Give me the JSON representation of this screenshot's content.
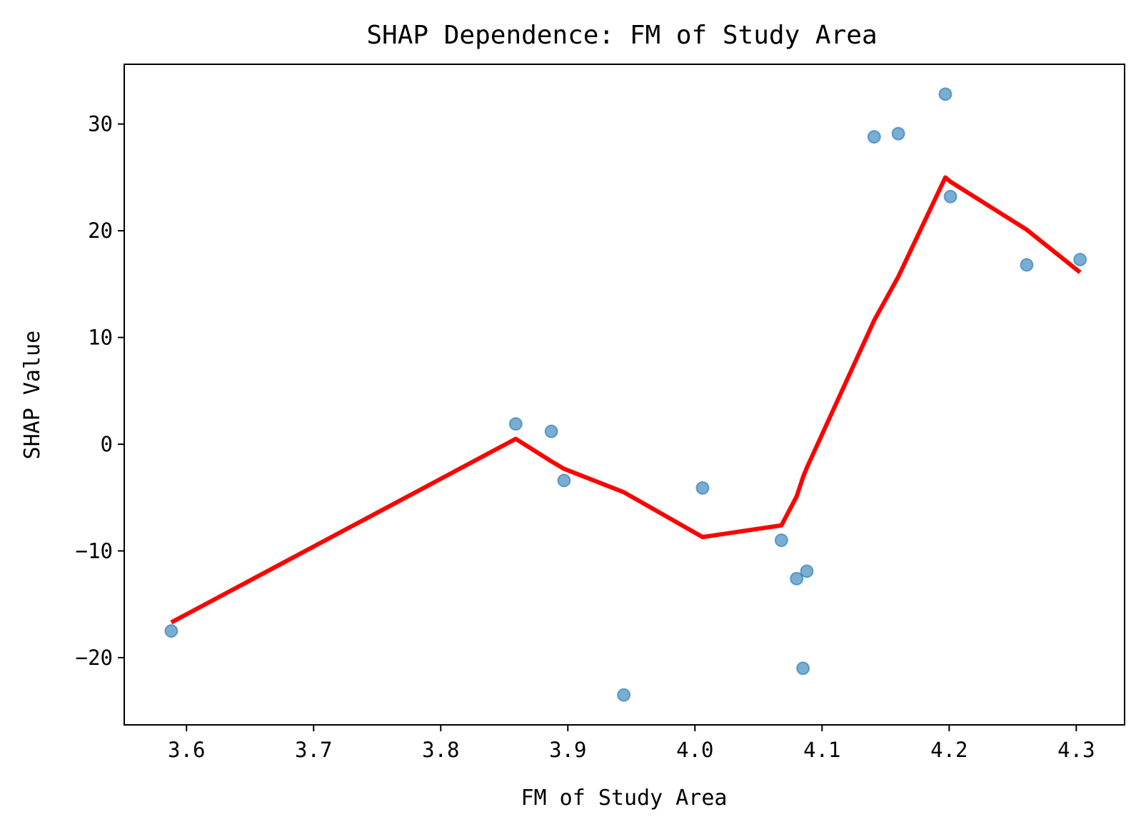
{
  "chart_data": {
    "type": "scatter",
    "title": "SHAP Dependence: FM of Study Area",
    "xlabel": "FM of Study Area",
    "ylabel": "SHAP Value",
    "xlim": [
      3.551,
      4.338
    ],
    "ylim": [
      -26.3,
      35.6
    ],
    "xticks": [
      {
        "value": 3.6,
        "label": "3.6"
      },
      {
        "value": 3.7,
        "label": "3.7"
      },
      {
        "value": 3.8,
        "label": "3.8"
      },
      {
        "value": 3.9,
        "label": "3.9"
      },
      {
        "value": 4.0,
        "label": "4.0"
      },
      {
        "value": 4.1,
        "label": "4.1"
      },
      {
        "value": 4.2,
        "label": "4.2"
      },
      {
        "value": 4.3,
        "label": "4.3"
      }
    ],
    "yticks": [
      {
        "value": -20,
        "label": "−20"
      },
      {
        "value": -10,
        "label": "−10"
      },
      {
        "value": 0,
        "label": "0"
      },
      {
        "value": 10,
        "label": "10"
      },
      {
        "value": 20,
        "label": "20"
      },
      {
        "value": 30,
        "label": "30"
      }
    ],
    "grid": false,
    "scatter_color": "#1f77b4",
    "scatter_opacity": 0.6,
    "line_color": "#ff0000",
    "points": [
      {
        "x": 3.588,
        "y": -17.5
      },
      {
        "x": 3.859,
        "y": 1.9
      },
      {
        "x": 3.887,
        "y": 1.2
      },
      {
        "x": 3.897,
        "y": -3.4
      },
      {
        "x": 3.944,
        "y": -23.5
      },
      {
        "x": 4.006,
        "y": -4.1
      },
      {
        "x": 4.068,
        "y": -9.0
      },
      {
        "x": 4.08,
        "y": -12.6
      },
      {
        "x": 4.085,
        "y": -21.0
      },
      {
        "x": 4.088,
        "y": -11.9
      },
      {
        "x": 4.141,
        "y": 28.8
      },
      {
        "x": 4.16,
        "y": 29.1
      },
      {
        "x": 4.197,
        "y": 32.8
      },
      {
        "x": 4.201,
        "y": 23.2
      },
      {
        "x": 4.261,
        "y": 16.8
      },
      {
        "x": 4.303,
        "y": 17.3
      }
    ],
    "trend_line": [
      {
        "x": 3.588,
        "y": -16.7
      },
      {
        "x": 3.859,
        "y": 0.5
      },
      {
        "x": 3.887,
        "y": -1.6
      },
      {
        "x": 3.897,
        "y": -2.3
      },
      {
        "x": 3.944,
        "y": -4.5
      },
      {
        "x": 4.006,
        "y": -8.7
      },
      {
        "x": 4.068,
        "y": -7.6
      },
      {
        "x": 4.08,
        "y": -4.9
      },
      {
        "x": 4.085,
        "y": -3.1
      },
      {
        "x": 4.088,
        "y": -2.2
      },
      {
        "x": 4.141,
        "y": 11.6
      },
      {
        "x": 4.16,
        "y": 15.7
      },
      {
        "x": 4.197,
        "y": 25.0
      },
      {
        "x": 4.201,
        "y": 24.6
      },
      {
        "x": 4.261,
        "y": 20.1
      },
      {
        "x": 4.303,
        "y": 16.1
      }
    ]
  }
}
